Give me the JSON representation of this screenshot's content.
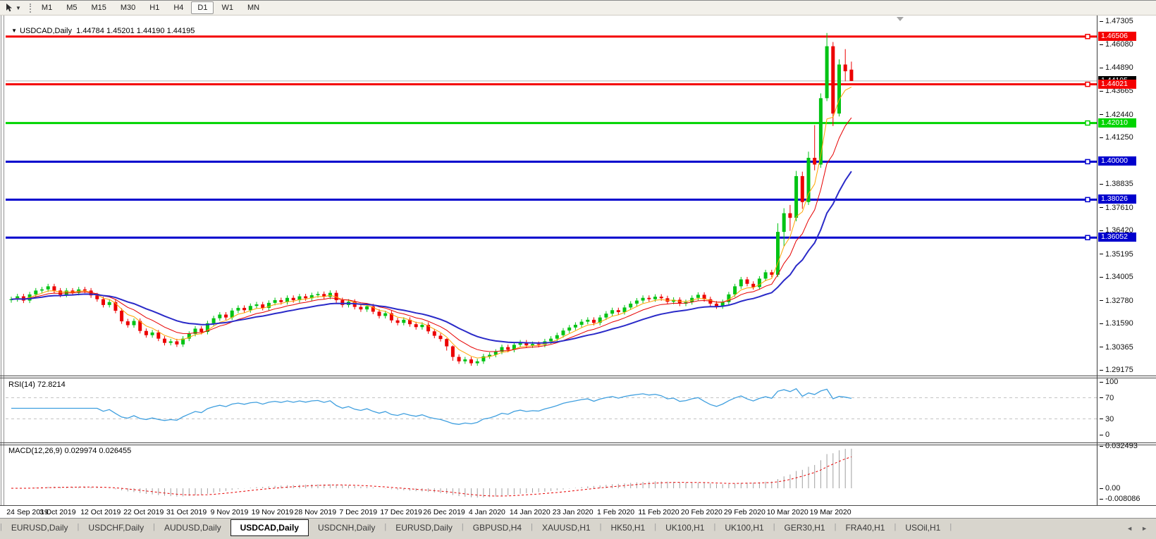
{
  "toolbar": {
    "timeframes": [
      "M1",
      "M5",
      "M15",
      "M30",
      "H1",
      "H4",
      "D1",
      "W1",
      "MN"
    ],
    "active_timeframe": "D1",
    "chart_tool_icon": "chart-cursor",
    "dropdown_icon": "caret-down"
  },
  "header": {
    "symbol_label": "USDCAD,Daily",
    "ohlc_text": "1.44784 1.45201 1.44190 1.44195",
    "open": "1.44784",
    "high": "1.45201",
    "low": "1.44190",
    "close": "1.44195"
  },
  "rsi_panel": {
    "label": "RSI(14) 72.8214",
    "value": 72.8214,
    "axis_ticks": [
      "100",
      "70",
      "30",
      "0"
    ],
    "level_lines": [
      70,
      30
    ],
    "line_color": "#3f9fdf"
  },
  "macd_panel": {
    "label": "MACD(12,26,9) 0.029974 0.026455",
    "main_value": 0.029974,
    "signal_value": 0.026455,
    "axis_ticks": [
      "0.032493",
      "0.00",
      "-0.008086"
    ],
    "histogram_color": "#a0a0a0",
    "signal_color": "#e60000"
  },
  "tabs": {
    "items": [
      "EURUSD,Daily",
      "USDCHF,Daily",
      "AUDUSD,Daily",
      "USDCAD,Daily",
      "USDCNH,Daily",
      "EURUSD,Daily",
      "GBPUSD,H4",
      "XAUUSD,H1",
      "HK50,H1",
      "UK100,H1",
      "UK100,H1",
      "GER30,H1",
      "FRA40,H1",
      "USOil,H1"
    ],
    "active_index": 3,
    "scroll_left_icon": "◄",
    "scroll_right_icon": "►"
  },
  "chart_data": {
    "type": "candlestick",
    "symbol": "USDCAD",
    "timeframe": "Daily",
    "title": "USDCAD,Daily",
    "y_range": [
      1.29175,
      1.47305
    ],
    "y_axis_ticks": [
      "1.47305",
      "1.46080",
      "1.44890",
      "1.43665",
      "1.42440",
      "1.41250",
      "1.38835",
      "1.37610",
      "1.36420",
      "1.35195",
      "1.34005",
      "1.32780",
      "1.31590",
      "1.30365",
      "1.29175"
    ],
    "x_tick_labels": [
      "24 Sep 2019",
      "3 Oct 2019",
      "12 Oct 2019",
      "22 Oct 2019",
      "31 Oct 2019",
      "9 Nov 2019",
      "19 Nov 2019",
      "28 Nov 2019",
      "7 Dec 2019",
      "17 Dec 2019",
      "26 Dec 2019",
      "4 Jan 2020",
      "14 Jan 2020",
      "23 Jan 2020",
      "1 Feb 2020",
      "11 Feb 2020",
      "20 Feb 2020",
      "29 Feb 2020",
      "10 Mar 2020",
      "19 Mar 2020"
    ],
    "bars_per_tick": 7,
    "current_price": {
      "value": "1.44195",
      "price": 1.44195,
      "line_color": "#b4b4b4",
      "badge_color": "#000000"
    },
    "levels": [
      {
        "value": "1.46506",
        "price": 1.46506,
        "color": "#f40000"
      },
      {
        "value": "1.44021",
        "price": 1.44021,
        "color": "#f40000"
      },
      {
        "value": "1.42010",
        "price": 1.4201,
        "color": "#00d400"
      },
      {
        "value": "1.40000",
        "price": 1.4,
        "color": "#0000cd"
      },
      {
        "value": "1.38026",
        "price": 1.38026,
        "color": "#0000cd"
      },
      {
        "value": "1.36052",
        "price": 1.36052,
        "color": "#0000cd"
      }
    ],
    "bull_color": "#00c314",
    "bear_color": "#ec0000",
    "moving_averages": [
      {
        "name": "fast",
        "method": "ema",
        "period": 5,
        "color": "#ffa400",
        "width": 1
      },
      {
        "name": "medium",
        "method": "ema",
        "period": 10,
        "color": "#e60000",
        "width": 1
      },
      {
        "name": "slow",
        "method": "ema",
        "period": 21,
        "color": "#2a2ac8",
        "width": 2
      }
    ],
    "indicators": {
      "rsi_period": 14,
      "macd": [
        12,
        26,
        9
      ]
    },
    "candles": [
      [
        1.328,
        1.3298,
        1.3267,
        1.3285
      ],
      [
        1.3285,
        1.3313,
        1.3272,
        1.33
      ],
      [
        1.33,
        1.3313,
        1.3265,
        1.3278
      ],
      [
        1.3278,
        1.3323,
        1.3265,
        1.331
      ],
      [
        1.331,
        1.3343,
        1.3297,
        1.333
      ],
      [
        1.333,
        1.3349,
        1.3317,
        1.3336
      ],
      [
        1.3336,
        1.3365,
        1.3323,
        1.3352
      ],
      [
        1.3352,
        1.3365,
        1.3317,
        1.333
      ],
      [
        1.333,
        1.3343,
        1.3295,
        1.3308
      ],
      [
        1.3308,
        1.3343,
        1.3295,
        1.333
      ],
      [
        1.333,
        1.3343,
        1.3305,
        1.3318
      ],
      [
        1.3318,
        1.3349,
        1.3305,
        1.3336
      ],
      [
        1.3336,
        1.3349,
        1.3317,
        1.333
      ],
      [
        1.333,
        1.3343,
        1.3292,
        1.3305
      ],
      [
        1.3305,
        1.3318,
        1.3272,
        1.3285
      ],
      [
        1.3285,
        1.3298,
        1.3242,
        1.3255
      ],
      [
        1.3255,
        1.3283,
        1.3242,
        1.327
      ],
      [
        1.327,
        1.3283,
        1.3212,
        1.3225
      ],
      [
        1.3225,
        1.3238,
        1.3157,
        1.317
      ],
      [
        1.317,
        1.3183,
        1.3137,
        1.315
      ],
      [
        1.315,
        1.3185,
        1.3137,
        1.3172
      ],
      [
        1.3172,
        1.3185,
        1.3107,
        1.312
      ],
      [
        1.312,
        1.3133,
        1.3085,
        1.3098
      ],
      [
        1.3098,
        1.3125,
        1.3085,
        1.3112
      ],
      [
        1.3112,
        1.3125,
        1.3067,
        1.308
      ],
      [
        1.308,
        1.3093,
        1.3045,
        1.3058
      ],
      [
        1.3058,
        1.3079,
        1.3045,
        1.3066
      ],
      [
        1.3066,
        1.3079,
        1.3037,
        1.305
      ],
      [
        1.305,
        1.3093,
        1.3037,
        1.308
      ],
      [
        1.308,
        1.3118,
        1.3067,
        1.3105
      ],
      [
        1.3105,
        1.3145,
        1.3092,
        1.3132
      ],
      [
        1.3132,
        1.3145,
        1.3102,
        1.3115
      ],
      [
        1.3115,
        1.3173,
        1.3102,
        1.316
      ],
      [
        1.316,
        1.3199,
        1.3147,
        1.3186
      ],
      [
        1.3186,
        1.3218,
        1.3173,
        1.3205
      ],
      [
        1.3205,
        1.3218,
        1.3177,
        1.319
      ],
      [
        1.319,
        1.3239,
        1.3177,
        1.3226
      ],
      [
        1.3226,
        1.3253,
        1.3213,
        1.324
      ],
      [
        1.324,
        1.3253,
        1.3215,
        1.3228
      ],
      [
        1.3228,
        1.3263,
        1.3215,
        1.325
      ],
      [
        1.325,
        1.3271,
        1.3237,
        1.3258
      ],
      [
        1.3258,
        1.3271,
        1.3227,
        1.324
      ],
      [
        1.324,
        1.3279,
        1.3227,
        1.3266
      ],
      [
        1.3266,
        1.3293,
        1.3253,
        1.328
      ],
      [
        1.328,
        1.3293,
        1.3257,
        1.327
      ],
      [
        1.327,
        1.3305,
        1.3257,
        1.3292
      ],
      [
        1.3292,
        1.3305,
        1.3267,
        1.328
      ],
      [
        1.328,
        1.3313,
        1.3267,
        1.33
      ],
      [
        1.33,
        1.3313,
        1.3277,
        1.329
      ],
      [
        1.329,
        1.3319,
        1.3277,
        1.3306
      ],
      [
        1.3306,
        1.3325,
        1.3293,
        1.3312
      ],
      [
        1.3312,
        1.3325,
        1.3285,
        1.3298
      ],
      [
        1.3298,
        1.3331,
        1.3285,
        1.3318
      ],
      [
        1.3318,
        1.3331,
        1.3267,
        1.328
      ],
      [
        1.328,
        1.3293,
        1.3242,
        1.3255
      ],
      [
        1.3255,
        1.3285,
        1.3242,
        1.3272
      ],
      [
        1.3272,
        1.3285,
        1.3232,
        1.3245
      ],
      [
        1.3245,
        1.3258,
        1.3219,
        1.3232
      ],
      [
        1.3232,
        1.3261,
        1.3219,
        1.3248
      ],
      [
        1.3248,
        1.3261,
        1.3207,
        1.322
      ],
      [
        1.322,
        1.3233,
        1.3185,
        1.3198
      ],
      [
        1.3198,
        1.3225,
        1.3185,
        1.3212
      ],
      [
        1.3212,
        1.3225,
        1.3162,
        1.3175
      ],
      [
        1.3175,
        1.3188,
        1.3149,
        1.3162
      ],
      [
        1.3162,
        1.3191,
        1.3149,
        1.3178
      ],
      [
        1.3178,
        1.3191,
        1.3142,
        1.3155
      ],
      [
        1.3155,
        1.3168,
        1.3127,
        1.314
      ],
      [
        1.314,
        1.3165,
        1.3127,
        1.3152
      ],
      [
        1.3152,
        1.3165,
        1.3105,
        1.3118
      ],
      [
        1.3118,
        1.3131,
        1.3082,
        1.3095
      ],
      [
        1.3095,
        1.3108,
        1.3065,
        1.3078
      ],
      [
        1.3078,
        1.3082,
        1.3018,
        1.304
      ],
      [
        1.304,
        1.3045,
        1.2965,
        1.2985
      ],
      [
        1.2985,
        1.2998,
        1.2949,
        1.2962
      ],
      [
        1.2962,
        1.2985,
        1.2949,
        1.2972
      ],
      [
        1.2972,
        1.2985,
        1.2939,
        1.2952
      ],
      [
        1.2952,
        1.2975,
        1.2939,
        1.2962
      ],
      [
        1.2962,
        1.3001,
        1.2949,
        1.2988
      ],
      [
        1.2988,
        1.3009,
        1.2975,
        1.2996
      ],
      [
        1.2996,
        1.3025,
        1.2983,
        1.3012
      ],
      [
        1.3012,
        1.3049,
        1.2999,
        1.3036
      ],
      [
        1.3036,
        1.3049,
        1.3009,
        1.3022
      ],
      [
        1.3022,
        1.3061,
        1.3009,
        1.3048
      ],
      [
        1.3048,
        1.3073,
        1.3035,
        1.306
      ],
      [
        1.306,
        1.3073,
        1.3032,
        1.3045
      ],
      [
        1.3045,
        1.3065,
        1.3032,
        1.3052
      ],
      [
        1.3052,
        1.3065,
        1.3035,
        1.3048
      ],
      [
        1.3048,
        1.3079,
        1.3035,
        1.3066
      ],
      [
        1.3066,
        1.3093,
        1.3053,
        1.308
      ],
      [
        1.308,
        1.3111,
        1.3067,
        1.3098
      ],
      [
        1.3098,
        1.3135,
        1.3085,
        1.3122
      ],
      [
        1.3122,
        1.3151,
        1.3109,
        1.3138
      ],
      [
        1.3138,
        1.3165,
        1.3125,
        1.3152
      ],
      [
        1.3152,
        1.3181,
        1.3139,
        1.3168
      ],
      [
        1.3168,
        1.3191,
        1.3155,
        1.3178
      ],
      [
        1.3178,
        1.3191,
        1.3149,
        1.3162
      ],
      [
        1.3162,
        1.3203,
        1.3149,
        1.319
      ],
      [
        1.319,
        1.3223,
        1.3177,
        1.321
      ],
      [
        1.321,
        1.3241,
        1.3197,
        1.3228
      ],
      [
        1.3228,
        1.3241,
        1.3205,
        1.3218
      ],
      [
        1.3218,
        1.3255,
        1.3205,
        1.3242
      ],
      [
        1.3242,
        1.3275,
        1.3229,
        1.3262
      ],
      [
        1.3262,
        1.3291,
        1.3249,
        1.3278
      ],
      [
        1.3278,
        1.3305,
        1.3265,
        1.3292
      ],
      [
        1.3292,
        1.3305,
        1.3272,
        1.3285
      ],
      [
        1.3285,
        1.3311,
        1.3272,
        1.3298
      ],
      [
        1.3298,
        1.3311,
        1.3277,
        1.329
      ],
      [
        1.329,
        1.3303,
        1.3259,
        1.3272
      ],
      [
        1.3272,
        1.3295,
        1.3259,
        1.3282
      ],
      [
        1.3282,
        1.3295,
        1.3249,
        1.3262
      ],
      [
        1.3262,
        1.3283,
        1.3249,
        1.327
      ],
      [
        1.327,
        1.3305,
        1.3257,
        1.3292
      ],
      [
        1.3292,
        1.3321,
        1.3279,
        1.3308
      ],
      [
        1.3308,
        1.3321,
        1.3272,
        1.3285
      ],
      [
        1.3285,
        1.3298,
        1.3249,
        1.3262
      ],
      [
        1.3262,
        1.3275,
        1.3235,
        1.3248
      ],
      [
        1.3248,
        1.3283,
        1.3235,
        1.327
      ],
      [
        1.327,
        1.3323,
        1.3257,
        1.331
      ],
      [
        1.331,
        1.3365,
        1.3297,
        1.3352
      ],
      [
        1.3352,
        1.3401,
        1.3339,
        1.3388
      ],
      [
        1.3388,
        1.3401,
        1.3352,
        1.3365
      ],
      [
        1.3365,
        1.3378,
        1.3335,
        1.3348
      ],
      [
        1.3348,
        1.3405,
        1.3335,
        1.3392
      ],
      [
        1.3392,
        1.3438,
        1.3379,
        1.3425
      ],
      [
        1.3425,
        1.3438,
        1.3399,
        1.3412
      ],
      [
        1.3412,
        1.368,
        1.34,
        1.3635
      ],
      [
        1.3635,
        1.3758,
        1.356,
        1.3732
      ],
      [
        1.3732,
        1.3775,
        1.364,
        1.3708
      ],
      [
        1.3708,
        1.3952,
        1.369,
        1.3925
      ],
      [
        1.3925,
        1.3948,
        1.3755,
        1.379
      ],
      [
        1.379,
        1.4052,
        1.3775,
        1.402
      ],
      [
        1.402,
        1.419,
        1.3955,
        1.3985
      ],
      [
        1.3985,
        1.4355,
        1.3968,
        1.433
      ],
      [
        1.433,
        1.4669,
        1.4315,
        1.46
      ],
      [
        1.46,
        1.4622,
        1.4185,
        1.425
      ],
      [
        1.425,
        1.4532,
        1.4235,
        1.4505
      ],
      [
        1.4505,
        1.4585,
        1.4418,
        1.447
      ],
      [
        1.44784,
        1.45201,
        1.4419,
        1.44195
      ]
    ]
  }
}
